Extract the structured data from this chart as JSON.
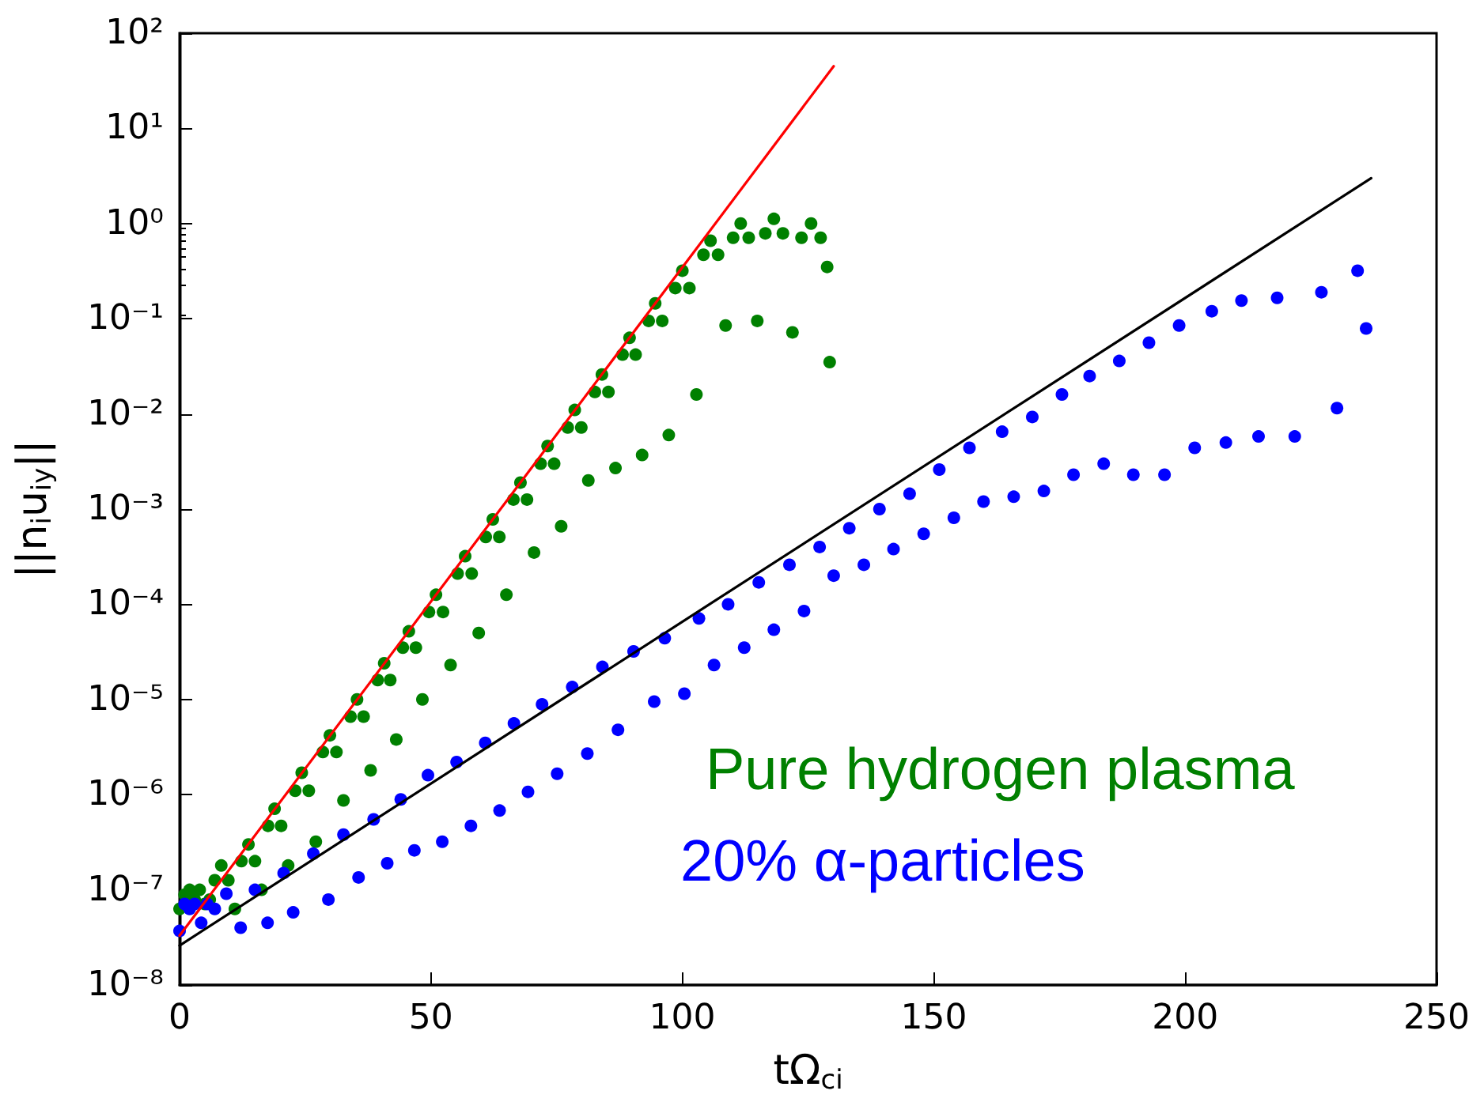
{
  "chart_data": {
    "type": "scatter",
    "xlabel": "tΩ$_{ci}$",
    "ylabel": "||n$_{i}$u$_{iy}$||",
    "log": "y",
    "grid": false,
    "marker": "circle",
    "xlim": [
      0,
      250
    ],
    "xticks": [
      0,
      50,
      100,
      150,
      200,
      250
    ],
    "ylim": [
      1e-08,
      100
    ],
    "yticks": [
      {
        "value": 1e-08,
        "label": "10⁻⁸"
      },
      {
        "value": 1e-07,
        "label": "10⁻⁷"
      },
      {
        "value": 1e-06,
        "label": "10⁻⁶"
      },
      {
        "value": 1e-05,
        "label": "10⁻⁵"
      },
      {
        "value": 0.0001,
        "label": "10⁻⁴"
      },
      {
        "value": 0.001,
        "label": "10⁻³"
      },
      {
        "value": 0.01,
        "label": "10⁻²"
      },
      {
        "value": 0.1,
        "label": "10⁻¹"
      },
      {
        "value": 1,
        "label": "10⁰"
      },
      {
        "value": 10,
        "label": "10¹"
      },
      {
        "value": 100,
        "label": "10²"
      }
    ],
    "series": [
      {
        "name": "Pure hydrogen plasma",
        "color": "#008000",
        "x": [
          0,
          1,
          2,
          3,
          4,
          5,
          6,
          7,
          8.3,
          9.7,
          11,
          12.3,
          13.7,
          15.0,
          16.3,
          17.6,
          18.9,
          20.2,
          21.6,
          23.0,
          24.3,
          25.7,
          27.1,
          28.5,
          29.9,
          31.2,
          32.6,
          34.0,
          35.3,
          36.6,
          38.0,
          39.4,
          40.7,
          41.9,
          43.1,
          44.4,
          45.6,
          47.0,
          48.3,
          49.6,
          51.0,
          52.4,
          53.9,
          55.3,
          56.8,
          58.1,
          59.5,
          60.9,
          62.3,
          63.6,
          65.0,
          66.4,
          67.8,
          69.1,
          70.5,
          71.8,
          73.2,
          74.5,
          75.9,
          77.2,
          78.6,
          79.9,
          81.3,
          82.6,
          84.0,
          85.3,
          86.7,
          88.1,
          89.5,
          90.7,
          92.0,
          93.3,
          94.6,
          96.0,
          97.3,
          98.6,
          100.0,
          101.4,
          102.8,
          104.2,
          105.6,
          107.1,
          108.6,
          110.1,
          111.6,
          113.2,
          114.9,
          116.5,
          118.2,
          120.0,
          121.9,
          123.7,
          125.6,
          127.5,
          128.8,
          129.3
        ],
        "values": [
          6.3e-08,
          8.9e-08,
          1e-07,
          7.9e-08,
          1e-07,
          7.1e-08,
          7.9e-08,
          1.26e-07,
          1.8e-07,
          1.26e-07,
          6.3e-08,
          2e-07,
          3e-07,
          2e-07,
          1e-07,
          4.7e-07,
          7.1e-07,
          4.7e-07,
          1.8e-07,
          1.1e-06,
          1.7e-06,
          1.1e-06,
          3.2e-07,
          2.8e-06,
          4.2e-06,
          2.8e-06,
          8.7e-07,
          6.6e-06,
          1e-05,
          6.6e-06,
          1.8e-06,
          1.6e-05,
          2.4e-05,
          1.6e-05,
          3.8e-06,
          3.5e-05,
          5.2e-05,
          3.5e-05,
          1e-05,
          8.3e-05,
          0.000126,
          8.3e-05,
          2.3e-05,
          0.00021,
          0.00032,
          0.00021,
          5e-05,
          0.00051,
          0.00078,
          0.00051,
          0.000126,
          0.00126,
          0.0019,
          0.00126,
          0.00035,
          0.003,
          0.0046,
          0.003,
          0.00066,
          0.0072,
          0.011,
          0.0072,
          0.002,
          0.017,
          0.026,
          0.017,
          0.0027,
          0.042,
          0.063,
          0.042,
          0.0037,
          0.095,
          0.145,
          0.095,
          0.006,
          0.21,
          0.32,
          0.21,
          0.016,
          0.47,
          0.66,
          0.47,
          0.085,
          0.71,
          1.0,
          0.71,
          0.095,
          0.79,
          1.12,
          0.79,
          0.072,
          0.71,
          1.0,
          0.71,
          0.35,
          0.035
        ]
      },
      {
        "name": "20% α-particles",
        "color": "#0000ff",
        "x": [
          0,
          1,
          2,
          3,
          4.3,
          5.5,
          7,
          9.3,
          12.15,
          15.0,
          17.5,
          20.7,
          22.6,
          26.6,
          29.6,
          32.6,
          35.6,
          38.6,
          41.3,
          44.0,
          46.7,
          49.4,
          52.25,
          55.1,
          57.95,
          60.8,
          63.65,
          66.5,
          69.3,
          72.1,
          75.1,
          78.1,
          81.1,
          84.1,
          87.2,
          90.3,
          94.4,
          96.5,
          100.4,
          103.3,
          106.3,
          109.1,
          112.3,
          115.2,
          118.2,
          121.3,
          124.2,
          127.3,
          130.1,
          133.2,
          136.1,
          139.2,
          142,
          145.2,
          148,
          151.1,
          154,
          157.1,
          159.9,
          163.6,
          165.9,
          169.6,
          171.9,
          175.5,
          177.8,
          181,
          183.8,
          186.9,
          189.7,
          192.8,
          195.9,
          198.8,
          201.9,
          205.3,
          208.1,
          211.2,
          214.6,
          218.3,
          221.8,
          227.1,
          230.2,
          234.3,
          236.0
        ],
        "values": [
          3.7e-08,
          7.1e-08,
          6.3e-08,
          7.1e-08,
          4.5e-08,
          7.1e-08,
          6.3e-08,
          9.1e-08,
          4e-08,
          1e-07,
          4.5e-08,
          1.5e-07,
          5.8e-08,
          2.4e-07,
          7.9e-08,
          3.8e-07,
          1.35e-07,
          5.5e-07,
          1.9e-07,
          8.9e-07,
          2.6e-07,
          1.6e-06,
          3.2e-07,
          2.2e-06,
          4.7e-07,
          3.5e-06,
          6.8e-07,
          5.6e-06,
          1.07e-06,
          8.9e-06,
          1.66e-06,
          1.35e-05,
          2.7e-06,
          2.2e-05,
          4.8e-06,
          3.2e-05,
          9.5e-06,
          4.4e-05,
          1.15e-05,
          7.1e-05,
          2.3e-05,
          0.0001,
          3.5e-05,
          0.00017,
          5.4e-05,
          0.00026,
          8.5e-05,
          0.0004,
          0.0002,
          0.00063,
          0.00026,
          0.001,
          0.00038,
          0.00145,
          0.00055,
          0.0026,
          0.00081,
          0.0044,
          0.0012,
          0.0065,
          0.00135,
          0.0093,
          0.00155,
          0.016,
          0.0023,
          0.025,
          0.003,
          0.036,
          0.0023,
          0.056,
          0.0023,
          0.085,
          0.0044,
          0.12,
          0.005,
          0.155,
          0.0058,
          0.166,
          0.0058,
          0.19,
          0.0115,
          0.32,
          0.079
        ]
      },
      {
        "type": "line",
        "marker": "none",
        "color": "#ff0000",
        "x": [
          0,
          130.1
        ],
        "values": [
          3.3e-08,
          45
        ]
      },
      {
        "type": "line",
        "marker": "none",
        "color": "#000000",
        "x": [
          0,
          237
        ],
        "values": [
          2.6e-08,
          3.0
        ]
      }
    ]
  }
}
